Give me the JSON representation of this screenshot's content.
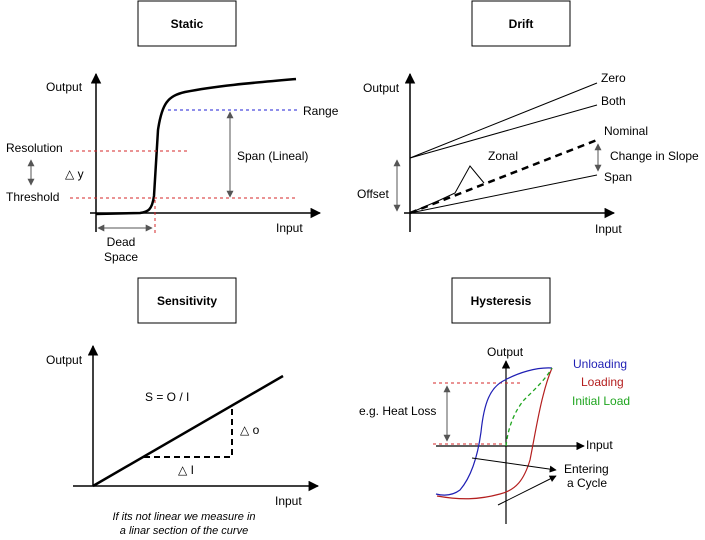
{
  "static": {
    "title": "Static",
    "output": "Output",
    "input": "Input",
    "range": "Range",
    "span": "Span (Lineal)",
    "resolution": "Resolution",
    "threshold": "Threshold",
    "delta_y": "△ y",
    "dead": "Dead",
    "space": "Space"
  },
  "drift": {
    "title": "Drift",
    "output": "Output",
    "input": "Input",
    "zero": "Zero",
    "both": "Both",
    "nominal": "Nominal",
    "change_slope": "Change in Slope",
    "span": "Span",
    "zonal": "Zonal",
    "offset": "Offset"
  },
  "sensitivity": {
    "title": "Sensitivity",
    "output": "Output",
    "input": "Input",
    "formula": "S = O / I",
    "delta_o": "△ o",
    "delta_i": "△ I",
    "note_line1": "If its not linear we measure in",
    "note_line2": "a linar section of the curve"
  },
  "hysteresis": {
    "title": "Hysteresis",
    "output": "Output",
    "input": "Input",
    "unloading": "Unloading",
    "loading": "Loading",
    "initial_load": "Initial Load",
    "heat_loss": "e.g. Heat Loss",
    "entering": "Entering",
    "a_cycle": "a Cycle"
  },
  "colors": {
    "unloading": "#1f1fb4",
    "loading": "#b41f1f",
    "initial_load": "#1fa51f",
    "guide_red": "#d62728",
    "guide_blue": "#1f1fd6"
  }
}
